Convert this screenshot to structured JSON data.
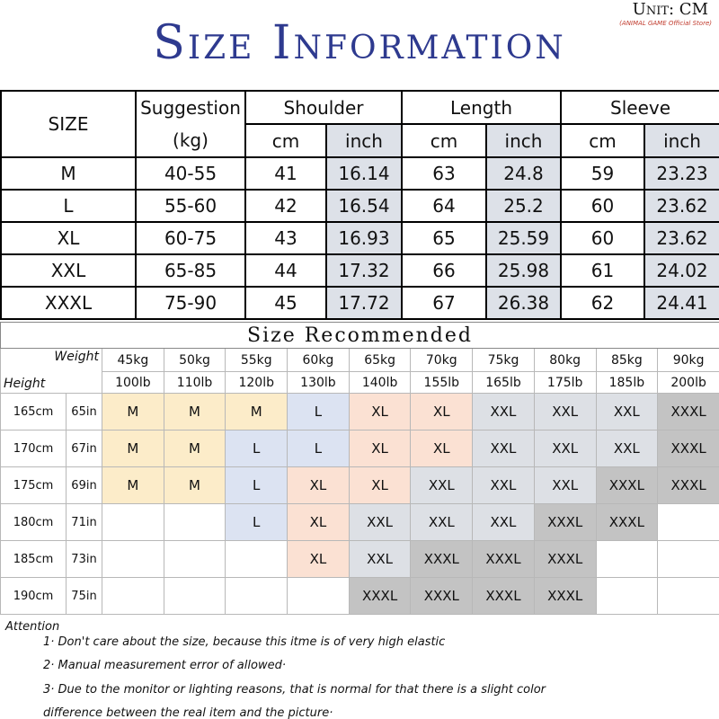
{
  "header": {
    "title": "Size Information",
    "unit": "Unit: CM",
    "store": "(ANIMAL GAME Official Store)"
  },
  "size_table": {
    "size_label": "SIZE",
    "suggestion_label": "Suggestion",
    "suggestion_unit": "(kg)",
    "groups": [
      "Shoulder",
      "Length",
      "Sleeve"
    ],
    "units": [
      "cm",
      "inch"
    ],
    "rows": [
      [
        "M",
        "40-55",
        "41",
        "16.14",
        "63",
        "24.8",
        "59",
        "23.23"
      ],
      [
        "L",
        "55-60",
        "42",
        "16.54",
        "64",
        "25.2",
        "60",
        "23.62"
      ],
      [
        "XL",
        "60-75",
        "43",
        "16.93",
        "65",
        "25.59",
        "60",
        "23.62"
      ],
      [
        "XXL",
        "65-85",
        "44",
        "17.32",
        "66",
        "25.98",
        "61",
        "24.02"
      ],
      [
        "XXXL",
        "75-90",
        "45",
        "17.72",
        "67",
        "26.38",
        "62",
        "24.41"
      ]
    ]
  },
  "recommend_table": {
    "title": "Size Recommended",
    "weight_label": "Weight",
    "height_label": "Height",
    "weights_kg": [
      "45kg",
      "50kg",
      "55kg",
      "60kg",
      "65kg",
      "70kg",
      "75kg",
      "80kg",
      "85kg",
      "90kg"
    ],
    "weights_lb": [
      "100lb",
      "110lb",
      "120lb",
      "130lb",
      "140lb",
      "155lb",
      "165lb",
      "175lb",
      "185lb",
      "200lb"
    ],
    "heights": [
      {
        "cm": "165cm",
        "in": "65in"
      },
      {
        "cm": "170cm",
        "in": "67in"
      },
      {
        "cm": "175cm",
        "in": "69in"
      },
      {
        "cm": "180cm",
        "in": "71in"
      },
      {
        "cm": "185cm",
        "in": "73in"
      },
      {
        "cm": "190cm",
        "in": "75in"
      }
    ],
    "cells": [
      [
        "M",
        "M",
        "M",
        "L",
        "XL",
        "XL",
        "XXL",
        "XXL",
        "XXL",
        "XXXL"
      ],
      [
        "M",
        "M",
        "L",
        "L",
        "XL",
        "XL",
        "XXL",
        "XXL",
        "XXL",
        "XXXL"
      ],
      [
        "M",
        "M",
        "L",
        "XL",
        "XL",
        "XXL",
        "XXL",
        "XXL",
        "XXXL",
        "XXXL"
      ],
      [
        null,
        null,
        "L",
        "XL",
        "XXL",
        "XXL",
        "XXL",
        "XXXL",
        "XXXL",
        null
      ],
      [
        null,
        null,
        null,
        "XL",
        "XXL",
        "XXXL",
        "XXXL",
        "XXXL",
        null,
        null
      ],
      [
        null,
        null,
        null,
        null,
        "XXXL",
        "XXXL",
        "XXXL",
        "XXXL",
        null,
        null
      ]
    ],
    "cell_colors": {
      "M": "#fcecc9",
      "L": "#dce3f2",
      "XL": "#fbe1d3",
      "XXL": "#dde0e5",
      "XXXL": "#c3c3c3"
    }
  },
  "attention": {
    "title": "Attention",
    "notes": [
      "1· Don't care about the size, because this itme is of very high elastic",
      "2· Manual measurement error of allowed·",
      "3·  Due to the monitor or lighting reasons, that is normal for that there is a slight color difference between the real item and the picture·"
    ]
  }
}
